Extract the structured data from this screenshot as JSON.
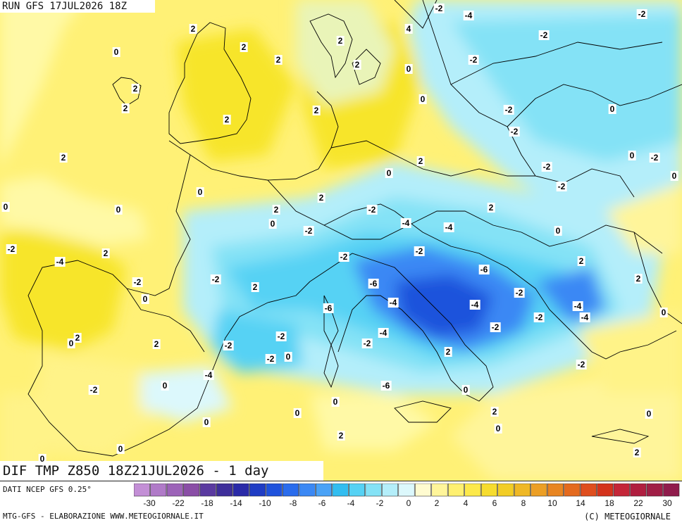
{
  "header": {
    "run": "RUN GFS 17JUL2026 18Z"
  },
  "footer": {
    "title": "DIF TMP Z850 18Z21JUL2026 - 1 day",
    "source": "DATI NCEP GFS 0.25°",
    "credit_left": "MTG-GFS - ELABORAZIONE WWW.METEOGIORNALE.IT",
    "credit_right": "(C) METEOGIORNALE"
  },
  "legend": {
    "colors": [
      "#c38fd6",
      "#b07ac8",
      "#9c63b8",
      "#8a4ea6",
      "#5a3aa0",
      "#3e2e9a",
      "#2a2aa8",
      "#1f3cc4",
      "#1f52dc",
      "#2a6cec",
      "#3b88f4",
      "#4aa2f6",
      "#32bdf0",
      "#56d2f4",
      "#84e2f6",
      "#b4eefa",
      "#dcf8fc",
      "#fffbd0",
      "#fff59a",
      "#fff070",
      "#fde94a",
      "#f6dc2e",
      "#f2cd25",
      "#efb825",
      "#ec9f25",
      "#e88522",
      "#e46a1e",
      "#df4e1e",
      "#d4331c",
      "#c42638",
      "#b01e40",
      "#a01e46",
      "#901c4c"
    ],
    "ticks": [
      "-30",
      "-26",
      "-22",
      "-18",
      "-14",
      "-10",
      "-8",
      "-6",
      "-4",
      "-2",
      "0",
      "2",
      "4",
      "6",
      "8",
      "10",
      "14",
      "18",
      "22",
      "26",
      "30"
    ]
  },
  "map_values": [
    "-2",
    "-4",
    "-2",
    "2",
    "4",
    "0",
    "2",
    "2",
    "-2",
    "2",
    "2",
    "-2",
    "0",
    "2",
    "2",
    "0",
    "-2",
    "2",
    "2",
    "0",
    "-2",
    "2",
    "2",
    "0",
    "-2",
    "0",
    "-2",
    "0",
    "-2",
    "0",
    "2",
    "0",
    "0",
    "0",
    "2",
    "-2",
    "2",
    "-2",
    "-4",
    "-4",
    "0",
    "-2",
    "2",
    "-2",
    "-4",
    "-2",
    "2",
    "-2",
    "-6",
    "-2",
    "2",
    "0",
    "-6",
    "-4",
    "2",
    "-2",
    "-4",
    "-6",
    "-4",
    "0",
    "-2",
    "-4",
    "-2",
    "-2",
    "-4",
    "-2",
    "0",
    "2",
    "2",
    "-2",
    "-2",
    "0",
    "2",
    "-2",
    "-4",
    "0",
    "-6",
    "0",
    "-2",
    "0",
    "0",
    "2",
    "0",
    "0",
    "0",
    "2",
    "0",
    "2",
    "0",
    "-2",
    "2"
  ]
}
